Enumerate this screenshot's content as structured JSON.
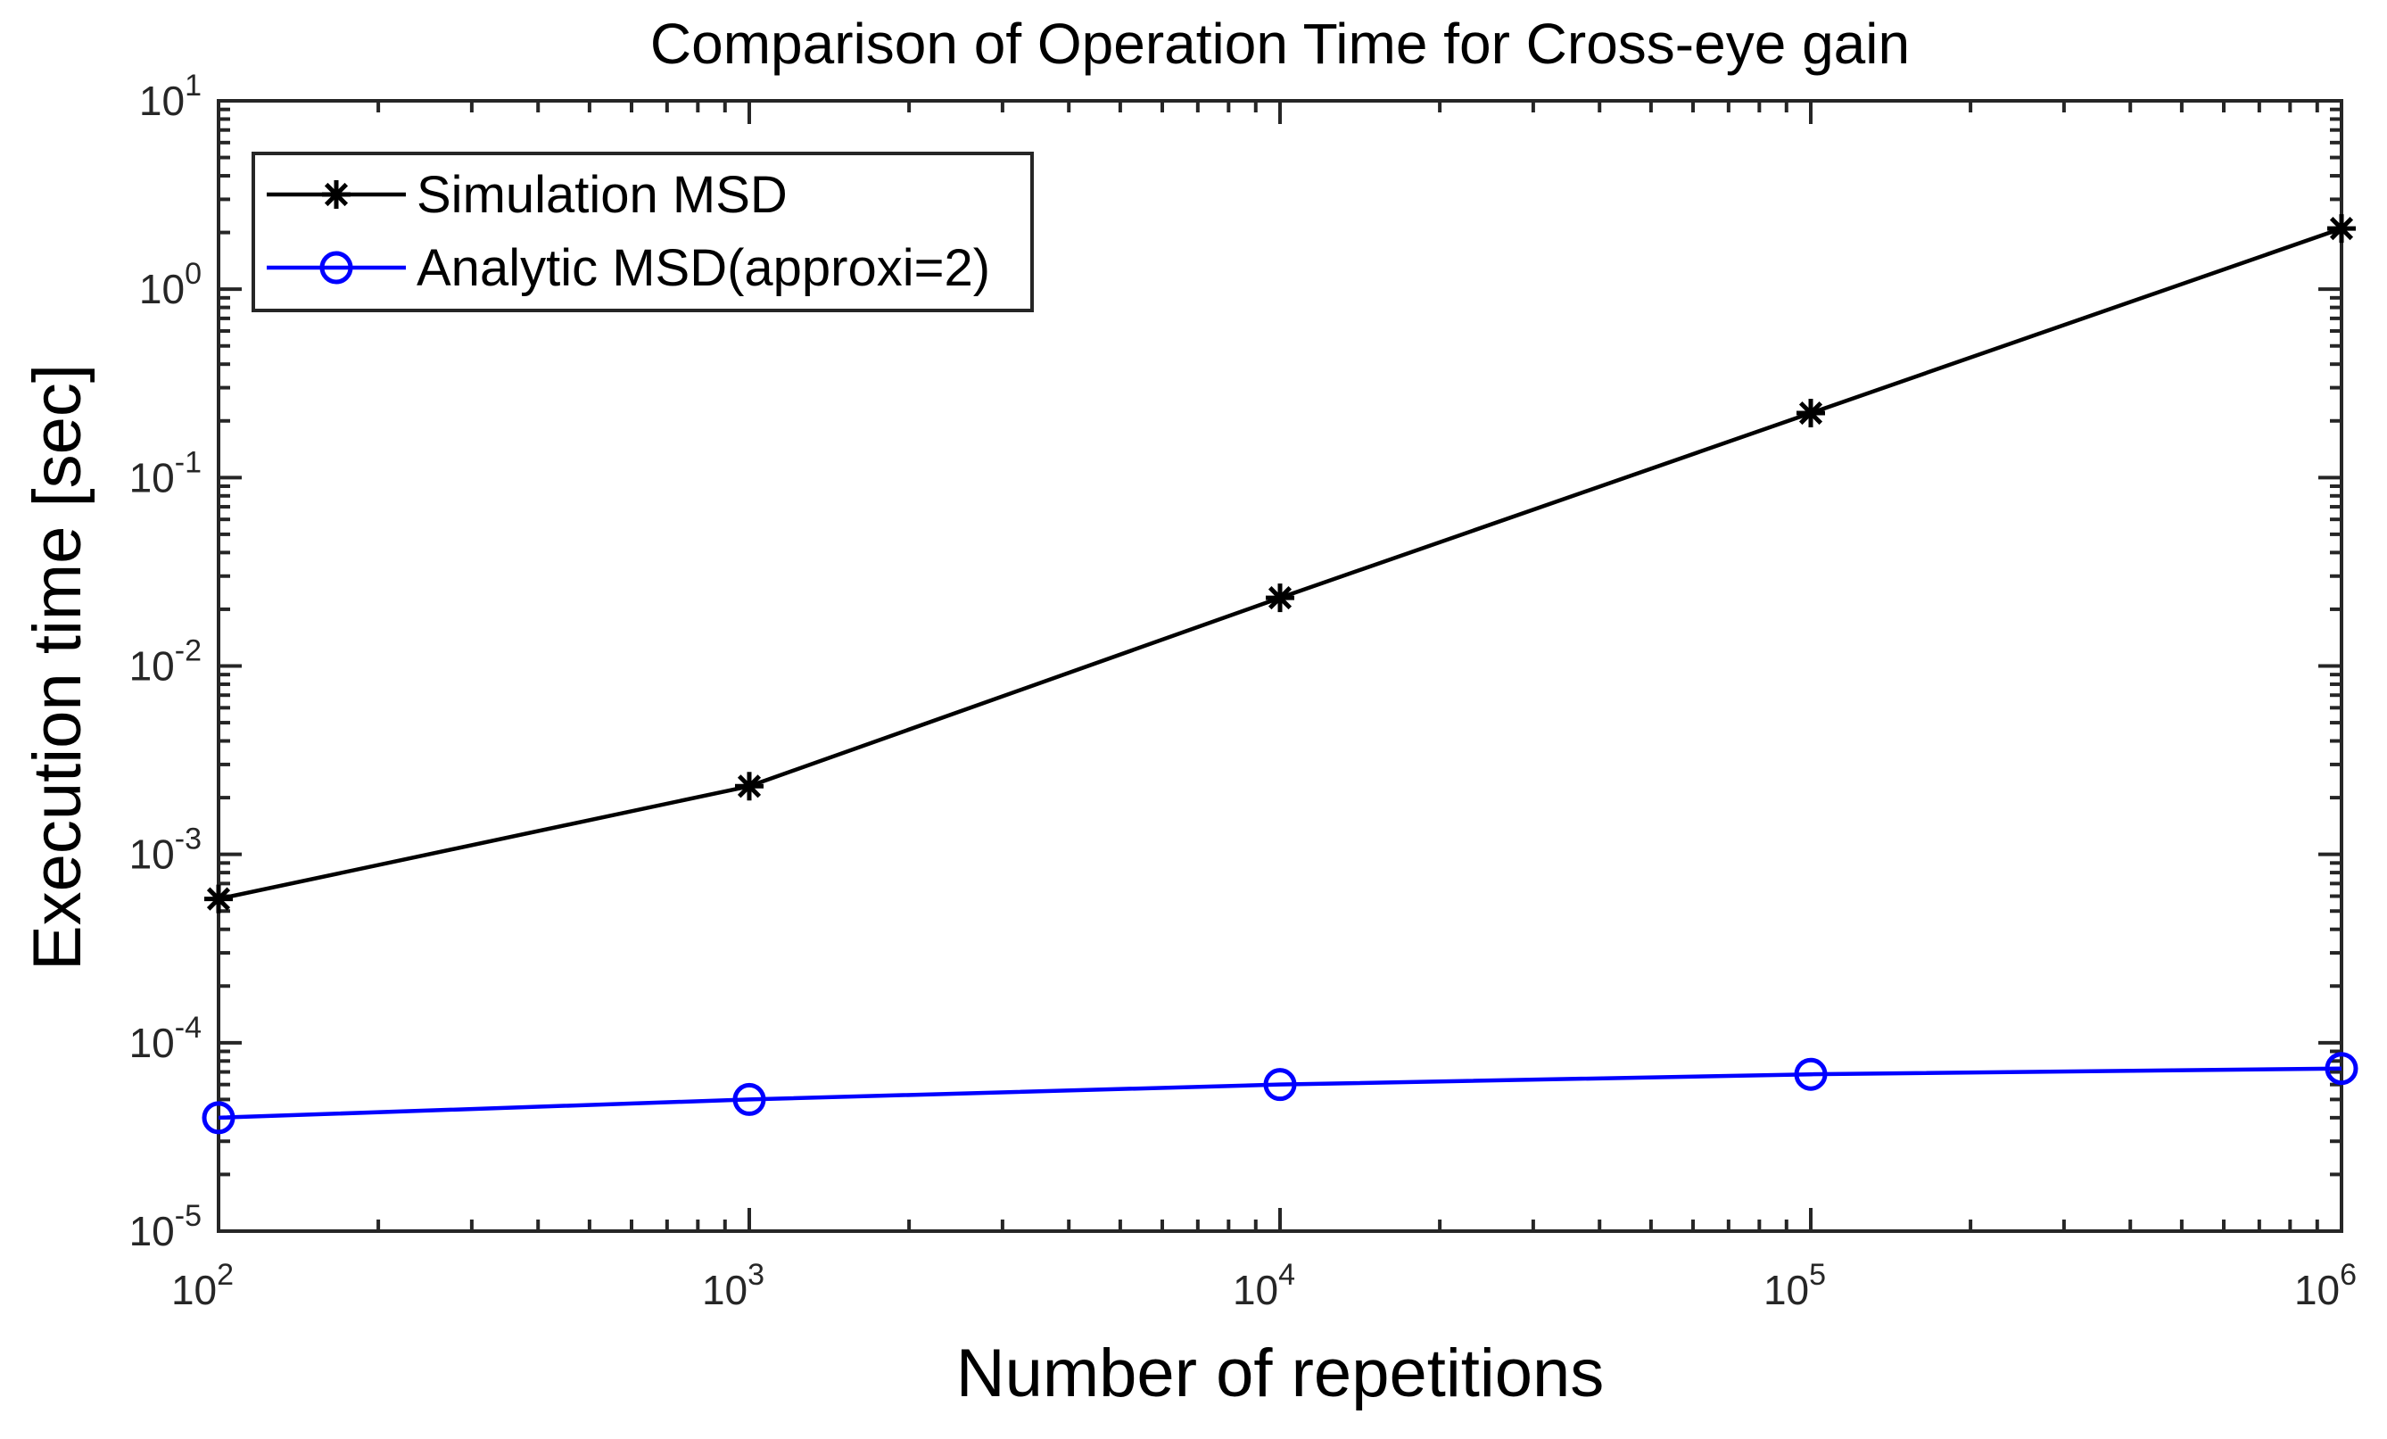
{
  "colors": {
    "background": "#ffffff",
    "axis": "#262626",
    "tick_label": "#262626",
    "text": "#000000",
    "series_black": "#000000",
    "series_blue": "#0000ff"
  },
  "chart_data": {
    "type": "line",
    "title": "Comparison of Operation Time for Cross-eye gain",
    "xlabel": "Number of repetitions",
    "ylabel": "Execution time [sec]",
    "x_scale": "log",
    "y_scale": "log",
    "xlim": [
      100,
      1000000
    ],
    "ylim": [
      1e-05,
      10
    ],
    "grid": false,
    "tick_base": "10",
    "x_tick_exponents": [
      2,
      3,
      4,
      5,
      6
    ],
    "y_tick_exponents": [
      -5,
      -4,
      -3,
      -2,
      -1,
      0,
      1
    ],
    "legend_position": "top-left",
    "x": [
      100,
      1000,
      10000,
      100000,
      1000000
    ],
    "series": [
      {
        "name": "Simulation MSD",
        "color": "#000000",
        "marker": "asterisk",
        "values": [
          0.00058,
          0.0023,
          0.023,
          0.22,
          2.1
        ]
      },
      {
        "name": "Analytic MSD(approxi=2)",
        "color": "#0000ff",
        "marker": "circle",
        "values": [
          4e-05,
          5e-05,
          6e-05,
          6.8e-05,
          7.3e-05
        ]
      }
    ]
  }
}
